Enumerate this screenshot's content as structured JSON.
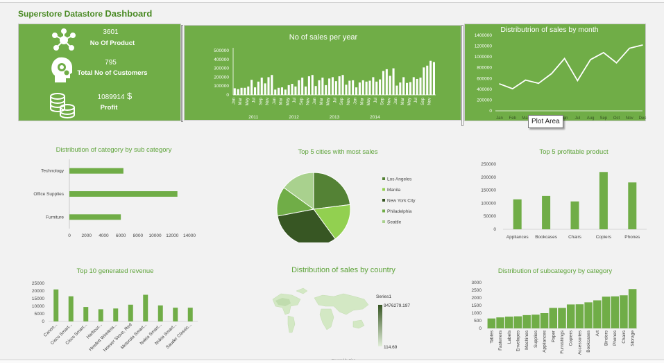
{
  "dashboard": {
    "title_prefix": "Superstore Datastore ",
    "title_suffix": "Dashboard"
  },
  "kpis": {
    "products": {
      "value": "3601",
      "label": "No Of Product"
    },
    "customers": {
      "value": "795",
      "label": "Total No of Customers"
    },
    "profit": {
      "value": "1089914",
      "symbol": "$",
      "label": "Profit"
    }
  },
  "tooltip": {
    "text": "Plot Area"
  },
  "map": {
    "legend_title": "Series1",
    "max": "9476279.197",
    "min": "114.69",
    "credit": "Powered by Bing"
  },
  "colors": {
    "accent": "#70ad47",
    "dark": "#375623",
    "light": "#a9d18e",
    "mid": "#92d050"
  },
  "chart_data": [
    {
      "id": "sales_per_year",
      "type": "bar",
      "title": "No of sales per year",
      "ylim": [
        0,
        500000
      ],
      "yticks": [
        "0",
        "100000",
        "200000",
        "300000",
        "400000",
        "500000"
      ],
      "month_labels": [
        "Jan",
        "Mar",
        "May",
        "Jul",
        "Sep",
        "Nov"
      ],
      "years": [
        "2011",
        "2012",
        "2013",
        "2014"
      ],
      "values": [
        75000,
        65000,
        80000,
        80000,
        95000,
        170000,
        85000,
        150000,
        195000,
        130000,
        200000,
        225000,
        60000,
        80000,
        85000,
        60000,
        110000,
        125000,
        95000,
        165000,
        195000,
        95000,
        210000,
        225000,
        100000,
        165000,
        195000,
        110000,
        185000,
        200000,
        155000,
        210000,
        225000,
        115000,
        160000,
        165000,
        85000,
        140000,
        165000,
        150000,
        160000,
        200000,
        150000,
        175000,
        270000,
        290000,
        215000,
        300000,
        105000,
        140000,
        200000,
        135000,
        145000,
        200000,
        180000,
        195000,
        310000,
        330000,
        385000,
        370000
      ]
    },
    {
      "id": "sales_by_month",
      "type": "line",
      "title": "Distributrion of sales by month",
      "ylim": [
        0,
        1400000
      ],
      "yticks": [
        "0",
        "200000",
        "400000",
        "600000",
        "800000",
        "1000000",
        "1200000",
        "1400000"
      ],
      "categories": [
        "Jan",
        "Feb",
        "Mar",
        "Apr",
        "May",
        "Jun",
        "Jul",
        "Aug",
        "Sep",
        "Oct",
        "Nov",
        "Dec"
      ],
      "values": [
        500000,
        410000,
        570000,
        510000,
        690000,
        970000,
        560000,
        950000,
        1080000,
        890000,
        1160000,
        1220000
      ]
    },
    {
      "id": "category_sub",
      "type": "bar",
      "title": "Distribution of category by sub category",
      "categories": [
        "Technology",
        "Office Supplies",
        "Furniture"
      ],
      "values": [
        6300,
        12600,
        6000
      ],
      "xlim": [
        0,
        14000
      ],
      "xticks": [
        "0",
        "2000",
        "4000",
        "6000",
        "8000",
        "10000",
        "12000",
        "14000"
      ]
    },
    {
      "id": "top_cities",
      "type": "pie",
      "title": "Top 5 cities with most sales",
      "categories": [
        "Los Angeles",
        "Manila",
        "New York City",
        "Philadelphia",
        "Seattle"
      ],
      "values": [
        23,
        17,
        32,
        13,
        15
      ],
      "colors": [
        "#548235",
        "#92d050",
        "#375623",
        "#70ad47",
        "#a9d18e"
      ]
    },
    {
      "id": "top_products",
      "type": "bar",
      "title": "Top 5 profitable product",
      "categories": [
        "Appliances",
        "Bookcases",
        "Chairs",
        "Copiers",
        "Phones"
      ],
      "values": [
        115000,
        128000,
        107000,
        220000,
        180000
      ],
      "ylim": [
        0,
        250000
      ],
      "yticks": [
        "0",
        "50000",
        "100000",
        "150000",
        "200000",
        "250000"
      ]
    },
    {
      "id": "top_revenue",
      "type": "bar",
      "title": "Top 10 generated revenue",
      "categories": [
        "Canon...",
        "Cisco Smart...",
        "Cisco Smart...",
        "Harbour...",
        "Hewlett Wireless...",
        "Hoover Stove, Red",
        "Motorola Smart...",
        "Nokia Smart...",
        "Nokia Smart...",
        "Sauder Classic..."
      ],
      "values": [
        21000,
        16500,
        9500,
        8000,
        8500,
        11000,
        17500,
        10500,
        9000,
        9000
      ],
      "ylim": [
        0,
        25000
      ],
      "yticks": [
        "0",
        "5000",
        "10000",
        "15000",
        "20000",
        "25000"
      ]
    },
    {
      "id": "sales_by_country",
      "type": "heatmap",
      "title": "Distribution of sales by country"
    },
    {
      "id": "subcat_by_cat",
      "type": "bar",
      "title": "Distribution of subcategory by category",
      "categories": [
        "Tables",
        "Fasteners",
        "Labels",
        "Envelopes",
        "Machines",
        "Supplies",
        "Appliances",
        "Paper",
        "Furnishings",
        "Copiers",
        "Accessories",
        "Bookcases",
        "Art",
        "Binders",
        "Phones",
        "Chairs",
        "Storage"
      ],
      "values": [
        650,
        720,
        770,
        790,
        870,
        900,
        1000,
        1340,
        1340,
        1570,
        1580,
        1710,
        1840,
        2080,
        2100,
        2170,
        2580
      ],
      "ylim": [
        0,
        3000
      ],
      "yticks": [
        "0",
        "500",
        "1000",
        "1500",
        "2000",
        "2500",
        "3000"
      ]
    }
  ]
}
